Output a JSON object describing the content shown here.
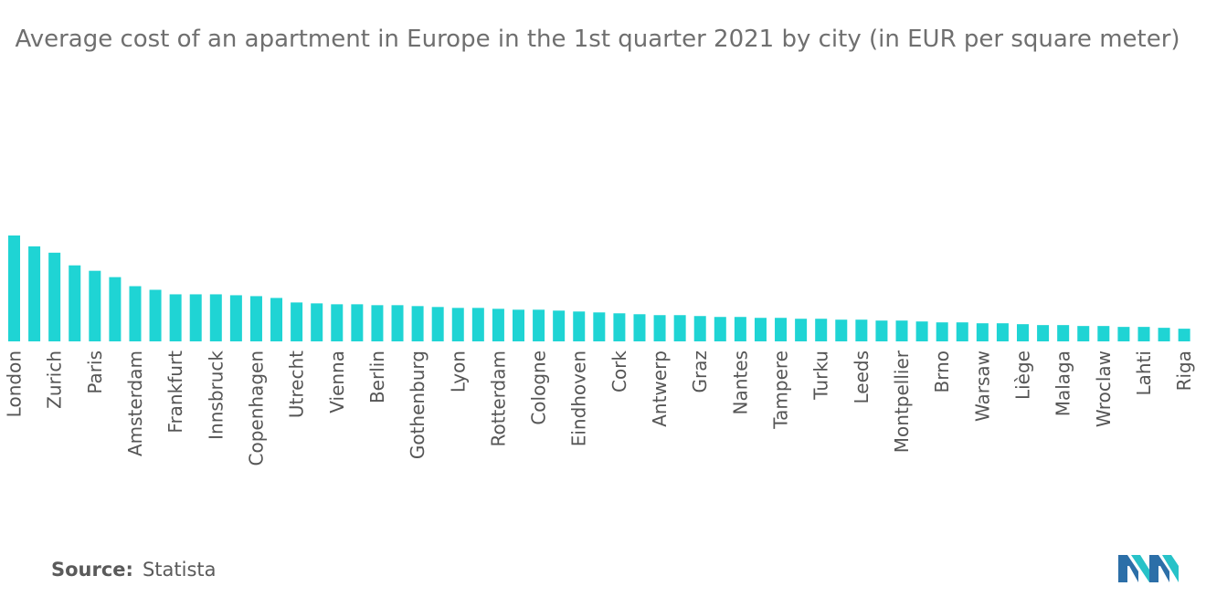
{
  "chart_data": {
    "type": "bar",
    "title": "Average cost of an apartment in Europe in the 1st quarter 2021 by city (in EUR per square meter)",
    "xlabel": "",
    "ylabel": "",
    "bar_color": "#1fd4d4",
    "categories": [
      "London",
      "",
      "Zurich",
      "",
      "Paris",
      "",
      "Amsterdam",
      "",
      "Frankfurt",
      "",
      "Innsbruck",
      "",
      "Copenhagen",
      "",
      "Utrecht",
      "",
      "Vienna",
      "",
      "Berlin",
      "",
      "Gothenburg",
      "",
      "Lyon",
      "",
      "Rotterdam",
      "",
      "Cologne",
      "",
      "Eindhoven",
      "",
      "Cork",
      "",
      "Antwerp",
      "",
      "Graz",
      "",
      "Nantes",
      "",
      "Tampere",
      "",
      "Turku",
      "",
      "Leeds",
      "",
      "Montpellier",
      "",
      "Brno",
      "",
      "Warsaw",
      "",
      "Liège",
      "",
      "Malaga",
      "",
      "Wroclaw",
      "",
      "Lahti",
      "",
      "Riga"
    ],
    "values": [
      117,
      105,
      98,
      84,
      78,
      71,
      61,
      57,
      52,
      52,
      52,
      51,
      50,
      48,
      43,
      42,
      41,
      41,
      40,
      40,
      39,
      38,
      37,
      37,
      36,
      35,
      35,
      34,
      33,
      32,
      31,
      30,
      29,
      29,
      28,
      27,
      27,
      26,
      26,
      25,
      25,
      24,
      24,
      23,
      23,
      22,
      21,
      21,
      20,
      20,
      19,
      18,
      18,
      17,
      17,
      16,
      16,
      15,
      14
    ],
    "ylim": [
      0,
      117
    ]
  },
  "footer": {
    "source_label": "Source:",
    "source_value": "Statista"
  }
}
